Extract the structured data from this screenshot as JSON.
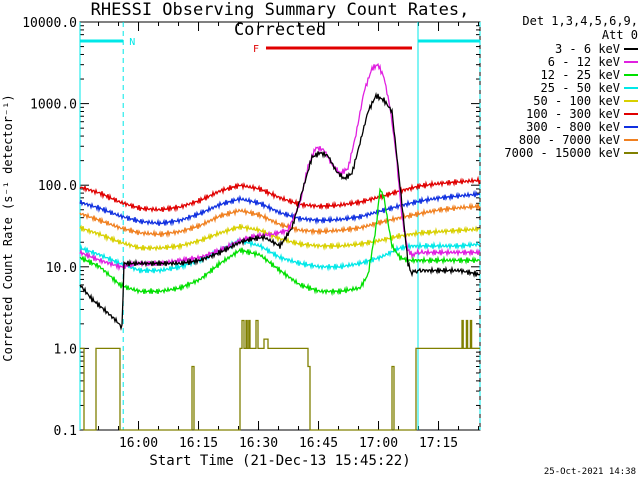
{
  "title": "RHESSI Observing Summary Count Rates, Corrected",
  "timestamp": "25-Oct-2021 14:38",
  "legend": {
    "header1": "Det 1,3,4,5,6,9,",
    "header2": "Att 0",
    "items": [
      {
        "label": "3 - 6 keV",
        "color": "#000000"
      },
      {
        "label": "6 - 12 keV",
        "color": "#e020e0"
      },
      {
        "label": "12 - 25 keV",
        "color": "#00e000"
      },
      {
        "label": "25 - 50 keV",
        "color": "#00e8e8"
      },
      {
        "label": "50 - 100 keV",
        "color": "#d8d000"
      },
      {
        "label": "100 - 300 keV",
        "color": "#e00000"
      },
      {
        "label": "300 - 800 keV",
        "color": "#1030e0"
      },
      {
        "label": "800 - 7000 keV",
        "color": "#f08020"
      },
      {
        "label": "7000 - 15000 keV",
        "color": "#808000"
      }
    ]
  },
  "chart_data": {
    "type": "line",
    "title": "RHESSI Observing Summary Count Rates, Corrected",
    "xlabel": "Start Time (21-Dec-13 15:45:22)",
    "ylabel": "Corrected Count Rate (s⁻¹ detector⁻¹)",
    "yscale": "log",
    "xlim_minutes": [
      0,
      100
    ],
    "ylim": [
      0.1,
      10000
    ],
    "x_ticks": [
      "16:00",
      "16:15",
      "16:30",
      "16:45",
      "17:00",
      "17:15"
    ],
    "x_tick_minutes": [
      14.63,
      29.63,
      44.63,
      59.63,
      74.63,
      89.63
    ],
    "y_ticks": [
      "0.1",
      "1.0",
      "10.0",
      "100.0",
      "1000.0",
      "10000.0"
    ],
    "y_tick_values": [
      0.1,
      1,
      10,
      100,
      1000,
      10000
    ],
    "annotations": [
      {
        "label": "N",
        "type": "night",
        "color": "#00e8e8"
      },
      {
        "label": "F",
        "type": "flare",
        "color": "#e00000"
      }
    ],
    "series": [
      {
        "name": "3 - 6 keV",
        "color": "#000000",
        "x": [
          0,
          3,
          6,
          9,
          10.5,
          11,
          15,
          20,
          25,
          30,
          35,
          40,
          43,
          46,
          50,
          53,
          56,
          58,
          60,
          62,
          64,
          66,
          68,
          70,
          72,
          74,
          76,
          78,
          80,
          82,
          83,
          83.8,
          84.2,
          86,
          90,
          95,
          100
        ],
        "y": [
          6,
          4,
          3,
          2.2,
          1.8,
          11,
          11,
          11,
          11,
          12,
          15,
          20,
          22,
          23,
          18,
          30,
          100,
          220,
          250,
          230,
          150,
          120,
          140,
          330,
          800,
          1250,
          1100,
          800,
          100,
          11,
          8,
          9,
          9,
          9,
          9,
          9,
          8
        ]
      },
      {
        "name": "6 - 12 keV",
        "color": "#e020e0",
        "x": [
          0,
          5,
          10,
          15,
          20,
          25,
          30,
          35,
          40,
          44,
          48,
          52,
          55,
          57,
          59,
          61,
          63,
          65,
          67,
          69,
          71,
          73,
          74.5,
          76,
          77.5,
          79,
          80.5,
          82,
          83,
          83.8,
          84.2,
          86,
          90,
          95,
          100
        ],
        "y": [
          15,
          12,
          10,
          11,
          11,
          12,
          13,
          16,
          21,
          24,
          25,
          28,
          60,
          170,
          290,
          270,
          180,
          140,
          160,
          420,
          1400,
          2700,
          3000,
          2100,
          900,
          250,
          40,
          16,
          14,
          15,
          15,
          15,
          15,
          15,
          15
        ]
      },
      {
        "name": "12 - 25 keV",
        "color": "#00e000",
        "x": [
          0,
          5,
          10,
          12,
          15,
          20,
          25,
          30,
          35,
          40,
          45,
          50,
          55,
          60,
          65,
          70,
          72,
          74,
          75,
          76,
          77,
          78,
          80,
          82,
          83,
          84,
          86,
          90,
          95,
          100
        ],
        "y": [
          13,
          10,
          6,
          5.5,
          5,
          5,
          5.5,
          7,
          11,
          16,
          14,
          9,
          6,
          5,
          5,
          5.5,
          8,
          30,
          90,
          70,
          35,
          18,
          13,
          12,
          12,
          12,
          12,
          12,
          12,
          12
        ]
      },
      {
        "name": "25 - 50 keV",
        "color": "#00e8e8",
        "x": [
          0,
          5,
          10,
          15,
          20,
          25,
          30,
          35,
          40,
          45,
          50,
          55,
          60,
          65,
          70,
          75,
          80,
          83,
          85,
          90,
          95,
          100
        ],
        "y": [
          17,
          14,
          11,
          9,
          9,
          10,
          12,
          16,
          21,
          18,
          13,
          11,
          10,
          10,
          11,
          13,
          17,
          18,
          18,
          18,
          18,
          19
        ]
      },
      {
        "name": "50 - 100 keV",
        "color": "#d8d000",
        "x": [
          0,
          5,
          10,
          15,
          20,
          25,
          30,
          35,
          40,
          45,
          50,
          55,
          60,
          65,
          70,
          75,
          80,
          85,
          90,
          95,
          100
        ],
        "y": [
          30,
          25,
          20,
          17,
          17,
          18,
          21,
          26,
          31,
          28,
          22,
          19,
          18,
          18,
          19,
          21,
          24,
          26,
          27,
          28,
          29
        ]
      },
      {
        "name": "100 - 300 keV",
        "color": "#e00000",
        "x": [
          0,
          5,
          10,
          15,
          20,
          25,
          30,
          35,
          40,
          45,
          50,
          55,
          60,
          65,
          70,
          75,
          80,
          85,
          90,
          95,
          100
        ],
        "y": [
          95,
          80,
          62,
          52,
          50,
          54,
          65,
          85,
          100,
          90,
          70,
          58,
          55,
          57,
          62,
          72,
          85,
          98,
          105,
          110,
          115
        ]
      },
      {
        "name": "300 - 800 keV",
        "color": "#1030e0",
        "x": [
          0,
          5,
          10,
          15,
          20,
          25,
          30,
          35,
          40,
          45,
          50,
          55,
          60,
          65,
          70,
          75,
          80,
          85,
          90,
          95,
          100
        ],
        "y": [
          62,
          52,
          42,
          36,
          34,
          37,
          45,
          58,
          68,
          60,
          46,
          39,
          37,
          38,
          41,
          48,
          56,
          64,
          70,
          74,
          78
        ]
      },
      {
        "name": "800 - 7000 keV",
        "color": "#f08020",
        "x": [
          0,
          5,
          10,
          15,
          20,
          25,
          30,
          35,
          40,
          45,
          50,
          55,
          60,
          65,
          70,
          75,
          80,
          85,
          90,
          95,
          100
        ],
        "y": [
          45,
          37,
          30,
          26,
          25,
          27,
          32,
          42,
          49,
          43,
          33,
          28,
          27,
          28,
          30,
          35,
          40,
          45,
          50,
          53,
          55
        ]
      },
      {
        "name": "7000 - 15000 keV",
        "color": "#808000",
        "x": [
          0,
          1,
          1.001,
          4,
          4.001,
          10,
          10.001,
          28,
          28.001,
          28.5,
          28.501,
          40,
          40.001,
          40.5,
          40.501,
          41,
          41.001,
          41.5,
          41.501,
          41.8,
          41.801,
          42.2,
          42.201,
          42.5,
          42.501,
          44,
          44.001,
          44.5,
          44.501,
          46,
          46.001,
          47,
          47.001,
          57,
          57.001,
          57.5,
          57.501,
          78,
          78.001,
          78.5,
          78.501,
          84,
          84.001,
          95.5,
          95.501,
          95.8,
          95.801,
          96.6,
          96.601,
          96.9,
          96.901,
          97.6,
          97.601,
          97.9,
          97.901,
          100
        ],
        "y": [
          1,
          1,
          0.1,
          0.1,
          1,
          1,
          0.1,
          0.1,
          0.6,
          0.6,
          0.1,
          0.1,
          1,
          1,
          2.2,
          2.2,
          1,
          1,
          2.2,
          2.2,
          1,
          1,
          2.2,
          2.2,
          1,
          1,
          2.2,
          2.2,
          1,
          1,
          1.3,
          1.3,
          1,
          1,
          0.6,
          0.6,
          0.1,
          0.1,
          0.6,
          0.6,
          0.1,
          0.1,
          1,
          1,
          2.2,
          2.2,
          1,
          1,
          2.2,
          2.2,
          1,
          1,
          2.2,
          2.2,
          1,
          1
        ]
      }
    ],
    "night_intervals_minutes": [
      [
        0,
        10.8
      ],
      [
        84.5,
        100
      ]
    ],
    "flare_interval_minutes": [
      46.5,
      83
    ]
  }
}
